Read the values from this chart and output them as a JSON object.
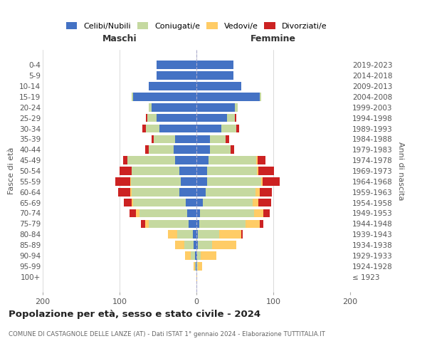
{
  "age_groups": [
    "100+",
    "95-99",
    "90-94",
    "85-89",
    "80-84",
    "75-79",
    "70-74",
    "65-69",
    "60-64",
    "55-59",
    "50-54",
    "45-49",
    "40-44",
    "35-39",
    "30-34",
    "25-29",
    "20-24",
    "15-19",
    "10-14",
    "5-9",
    "0-4"
  ],
  "birth_years": [
    "≤ 1923",
    "1924-1928",
    "1929-1933",
    "1934-1938",
    "1939-1943",
    "1944-1948",
    "1949-1953",
    "1954-1958",
    "1959-1963",
    "1964-1968",
    "1969-1973",
    "1974-1978",
    "1979-1983",
    "1984-1988",
    "1989-1993",
    "1994-1998",
    "1999-2003",
    "2004-2008",
    "2009-2013",
    "2014-2018",
    "2019-2023"
  ],
  "colors": {
    "celibi": "#4472C4",
    "coniugati": "#C5D9A0",
    "vedovi": "#FFCC66",
    "divorziati": "#CC2222"
  },
  "maschi": {
    "celibi": [
      0,
      1,
      2,
      4,
      5,
      10,
      12,
      14,
      22,
      20,
      22,
      28,
      30,
      28,
      48,
      52,
      58,
      82,
      62,
      52,
      52
    ],
    "coniugati": [
      0,
      1,
      5,
      12,
      20,
      52,
      62,
      68,
      62,
      65,
      62,
      62,
      32,
      28,
      18,
      12,
      4,
      2,
      0,
      0,
      0
    ],
    "vedovi": [
      0,
      2,
      8,
      12,
      12,
      5,
      5,
      2,
      2,
      1,
      0,
      0,
      0,
      0,
      0,
      0,
      0,
      0,
      0,
      0,
      0
    ],
    "divorziati": [
      0,
      0,
      0,
      0,
      0,
      5,
      8,
      10,
      16,
      20,
      16,
      5,
      5,
      2,
      4,
      2,
      0,
      0,
      0,
      0,
      0
    ]
  },
  "femmine": {
    "celibi": [
      0,
      0,
      1,
      2,
      2,
      4,
      5,
      8,
      12,
      14,
      14,
      16,
      18,
      18,
      32,
      40,
      50,
      82,
      58,
      48,
      48
    ],
    "coniugati": [
      0,
      2,
      5,
      18,
      28,
      60,
      70,
      65,
      65,
      70,
      65,
      62,
      26,
      20,
      20,
      10,
      4,
      2,
      0,
      0,
      0
    ],
    "vedovi": [
      1,
      5,
      20,
      32,
      28,
      18,
      12,
      8,
      5,
      2,
      2,
      2,
      0,
      0,
      0,
      0,
      0,
      0,
      0,
      0,
      0
    ],
    "divorziati": [
      0,
      0,
      0,
      0,
      2,
      5,
      8,
      16,
      16,
      22,
      20,
      10,
      5,
      5,
      4,
      2,
      0,
      0,
      0,
      0,
      0
    ]
  },
  "title": "Popolazione per età, sesso e stato civile - 2024",
  "subtitle": "COMUNE DI CASTAGNOLE DELLE LANZE (AT) - Dati ISTAT 1° gennaio 2024 - Elaborazione TUTTITALIA.IT",
  "ylabel_left": "Fasce di età",
  "ylabel_right": "Anni di nascita",
  "xlabel_maschi": "Maschi",
  "xlabel_femmine": "Femmine",
  "legend_labels": [
    "Celibi/Nubili",
    "Coniugati/e",
    "Vedovi/e",
    "Divorziati/e"
  ],
  "xlim": 200,
  "bar_height": 0.78,
  "background_color": "#ffffff"
}
